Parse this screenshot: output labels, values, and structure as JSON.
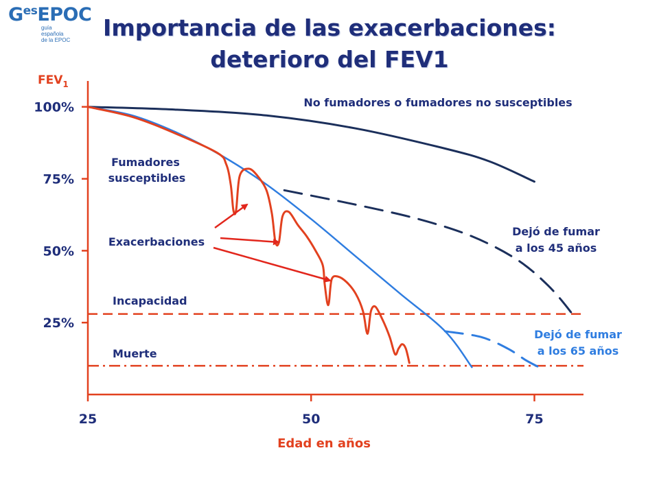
{
  "logo": {
    "brand_prefix": "G",
    "brand_sup": "es",
    "brand_suffix": "EPOC",
    "tagline": [
      "guía",
      "española",
      "de la EPOC"
    ]
  },
  "title": {
    "line1": "Importancia de las exacerbaciones:",
    "line2": "deterioro del  FEV1"
  },
  "chart_data": {
    "type": "line",
    "ylabel_main": "FEV",
    "ylabel_sub": "1",
    "xlabel": "Edad en años",
    "x_ticks": [
      25,
      50,
      75
    ],
    "y_ticks": [
      "100%",
      "75%",
      "50%",
      "25%"
    ],
    "y_tick_values": [
      100,
      75,
      50,
      25
    ],
    "xlim": [
      25,
      80.5
    ],
    "ylim": [
      0,
      109
    ],
    "grid": false,
    "colors": {
      "axis": "#e2411f",
      "non_smokers": "#1b2f5b",
      "susceptible": "#2f7de0",
      "exacerbation": "#e2411f",
      "reference": "#e2411f",
      "arrow": "#e2261c",
      "label_dark": "#1f2e7a",
      "label_blue": "#2f7de0",
      "label_axis": "#e2411f"
    },
    "series": [
      {
        "name": "No fumadores o fumadores no susceptibles",
        "style": "solid",
        "color_key": "non_smokers",
        "points": [
          [
            25,
            100
          ],
          [
            35,
            99
          ],
          [
            45,
            97
          ],
          [
            55,
            92.5
          ],
          [
            65,
            85.5
          ],
          [
            70,
            81
          ],
          [
            75,
            74
          ]
        ]
      },
      {
        "name": "Fumadores susceptibles",
        "style": "solid",
        "color_key": "susceptible",
        "points": [
          [
            25,
            100
          ],
          [
            30,
            97
          ],
          [
            35,
            91
          ],
          [
            40,
            83
          ],
          [
            45,
            73
          ],
          [
            50,
            61
          ],
          [
            55,
            48
          ],
          [
            60,
            35
          ],
          [
            65,
            22
          ],
          [
            68,
            9.5
          ]
        ]
      },
      {
        "name": "Dejó de fumar a los 45 años",
        "style": "dashed",
        "color_key": "non_smokers",
        "points": [
          [
            47,
            71
          ],
          [
            55,
            66
          ],
          [
            62,
            61
          ],
          [
            68,
            55
          ],
          [
            73,
            47
          ],
          [
            76.5,
            38
          ],
          [
            79,
            29
          ],
          [
            79.5,
            26
          ]
        ]
      },
      {
        "name": "Dejó de fumar a los 65 años",
        "style": "dashed",
        "color_key": "susceptible",
        "points": [
          [
            65,
            22
          ],
          [
            69,
            20
          ],
          [
            72,
            16
          ],
          [
            74,
            12
          ],
          [
            75.5,
            9.5
          ]
        ]
      },
      {
        "name": "Exacerbaciones",
        "style": "solid",
        "color_key": "exacerbation",
        "points": [
          [
            25,
            100
          ],
          [
            30,
            96.5
          ],
          [
            35,
            90.5
          ],
          [
            39.5,
            84
          ],
          [
            40.5,
            80
          ],
          [
            41,
            73
          ],
          [
            41.3,
            64
          ],
          [
            41.6,
            64
          ],
          [
            42,
            76
          ],
          [
            43,
            78.5
          ],
          [
            44,
            76
          ],
          [
            45,
            71
          ],
          [
            45.6,
            63
          ],
          [
            46,
            53
          ],
          [
            46.4,
            53
          ],
          [
            46.8,
            62
          ],
          [
            47.5,
            63.5
          ],
          [
            48.5,
            59
          ],
          [
            49.5,
            55
          ],
          [
            50.5,
            50
          ],
          [
            51.3,
            45
          ],
          [
            51.5,
            39
          ],
          [
            51.8,
            32
          ],
          [
            52,
            32
          ],
          [
            52.3,
            40
          ],
          [
            53,
            41
          ],
          [
            54,
            39
          ],
          [
            55,
            35
          ],
          [
            55.8,
            29
          ],
          [
            56.2,
            22
          ],
          [
            56.4,
            22
          ],
          [
            56.7,
            29
          ],
          [
            57.2,
            30.5
          ],
          [
            58,
            26
          ],
          [
            58.8,
            20
          ],
          [
            59.4,
            14
          ],
          [
            59.8,
            16
          ],
          [
            60.2,
            17.5
          ],
          [
            60.6,
            16
          ],
          [
            61,
            11
          ]
        ]
      }
    ],
    "reference_lines": [
      {
        "name": "Incapacidad",
        "y": 28,
        "style": "dashed"
      },
      {
        "name": "Muerte",
        "y": 10,
        "style": "dashdot"
      }
    ],
    "annotations": {
      "non_smokers": "No fumadores o fumadores no susceptibles",
      "susceptible": [
        "Fumadores",
        "susceptibles"
      ],
      "exacerbations": "Exacerbaciones",
      "quit45": [
        "Dejó de fumar",
        "a los 45 años"
      ],
      "quit65": [
        "Dejó de fumar",
        "a los 65 años"
      ],
      "incapacity": "Incapacidad",
      "death": "Muerte"
    }
  }
}
